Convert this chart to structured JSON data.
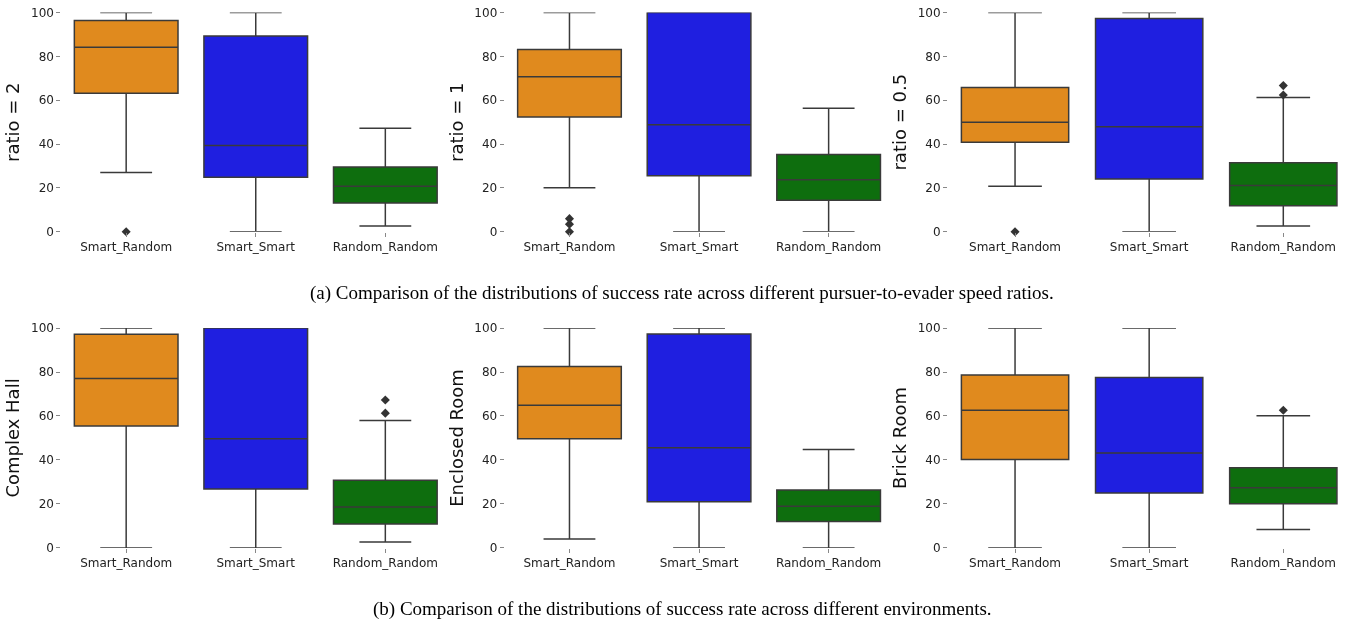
{
  "chart_data": [
    {
      "type": "box",
      "ylabel": "ratio = 2",
      "categories": [
        "Smart_Random",
        "Smart_Smart",
        "Random_Random"
      ],
      "colors": [
        "#e08a1e",
        "#1f1fe0",
        "#0e6e0e"
      ],
      "ylim": [
        0,
        100
      ],
      "yticks": [
        0,
        20,
        40,
        60,
        80,
        100
      ],
      "marker": "diamond",
      "boxes": [
        {
          "low": 27,
          "q1": 63.2,
          "median": 84.2,
          "q3": 96.4,
          "high": 100,
          "outliers": [
            0
          ]
        },
        {
          "low": 0,
          "q1": 24.9,
          "median": 39.4,
          "q3": 89.3,
          "high": 100
        },
        {
          "low": 2.7,
          "q1": 13.1,
          "median": 20.8,
          "q3": 29.6,
          "high": 47.2
        }
      ]
    },
    {
      "type": "box",
      "ylabel": "ratio = 1",
      "categories": [
        "Smart_Random",
        "Smart_Smart",
        "Random_Random"
      ],
      "colors": [
        "#e08a1e",
        "#1f1fe0",
        "#0e6e0e"
      ],
      "ylim": [
        0,
        100
      ],
      "yticks": [
        0,
        20,
        40,
        60,
        80,
        100
      ],
      "marker": "diamond",
      "boxes": [
        {
          "low": 20.1,
          "q1": 52.4,
          "median": 70.7,
          "q3": 83.2,
          "high": 100,
          "outliers": [
            0,
            3.5,
            6
          ]
        },
        {
          "low": 0,
          "q1": 25.6,
          "median": 48.8,
          "q3": 100,
          "high": 100
        },
        {
          "low": 0,
          "q1": 14.4,
          "median": 23.7,
          "q3": 35.3,
          "high": 56.4
        }
      ]
    },
    {
      "type": "box",
      "ylabel": "ratio = 0.5",
      "categories": [
        "Smart_Random",
        "Smart_Smart",
        "Random_Random"
      ],
      "colors": [
        "#e08a1e",
        "#1f1fe0",
        "#0e6e0e"
      ],
      "ylim": [
        0,
        100
      ],
      "yticks": [
        0,
        20,
        40,
        60,
        80,
        100
      ],
      "marker": "diamond",
      "annotations": [
        "(a) Comparison of the distributions of success rate across different pursuer-to-evader speed ratios."
      ],
      "boxes": [
        {
          "low": 20.8,
          "q1": 40.8,
          "median": 50,
          "q3": 65.8,
          "high": 100,
          "outliers": [
            0
          ]
        },
        {
          "low": 0,
          "q1": 24.1,
          "median": 47.9,
          "q3": 97.3,
          "high": 100
        },
        {
          "low": 2.7,
          "q1": 11.9,
          "median": 21.1,
          "q3": 31.5,
          "high": 61.3,
          "outliers": [
            62.4,
            66.7
          ]
        }
      ]
    },
    {
      "type": "box",
      "ylabel": "Complex Hall",
      "categories": [
        "Smart_Random",
        "Smart_Smart",
        "Random_Random"
      ],
      "colors": [
        "#e08a1e",
        "#1f1fe0",
        "#0e6e0e"
      ],
      "ylim": [
        0,
        100
      ],
      "yticks": [
        0,
        20,
        40,
        60,
        80,
        100
      ],
      "marker": "diamond",
      "boxes": [
        {
          "low": 0,
          "q1": 55.4,
          "median": 77.1,
          "q3": 97.2,
          "high": 100
        },
        {
          "low": 0,
          "q1": 26.8,
          "median": 49.6,
          "q3": 100,
          "high": 100
        },
        {
          "low": 2.7,
          "q1": 10.9,
          "median": 18.6,
          "q3": 30.8,
          "high": 58,
          "outliers": [
            61.3,
            67.3
          ]
        }
      ]
    },
    {
      "type": "box",
      "ylabel": "Enclosed Room",
      "categories": [
        "Smart_Random",
        "Smart_Smart",
        "Random_Random"
      ],
      "colors": [
        "#e08a1e",
        "#1f1fe0",
        "#0e6e0e"
      ],
      "ylim": [
        0,
        100
      ],
      "yticks": [
        0,
        20,
        40,
        60,
        80,
        100
      ],
      "marker": "diamond",
      "boxes": [
        {
          "low": 4,
          "q1": 49.6,
          "median": 64.9,
          "q3": 82.5,
          "high": 100
        },
        {
          "low": 0,
          "q1": 21,
          "median": 45.6,
          "q3": 97.3,
          "high": 100
        },
        {
          "low": 0,
          "q1": 12,
          "median": 18.9,
          "q3": 26.3,
          "high": 44.8
        }
      ]
    },
    {
      "type": "box",
      "ylabel": "Brick Room",
      "categories": [
        "Smart_Random",
        "Smart_Smart",
        "Random_Random"
      ],
      "colors": [
        "#e08a1e",
        "#1f1fe0",
        "#0e6e0e"
      ],
      "ylim": [
        0,
        100
      ],
      "yticks": [
        0,
        20,
        40,
        60,
        80,
        100
      ],
      "marker": "diamond",
      "annotations": [
        "(b) Comparison of the distributions of success rate across different environments."
      ],
      "boxes": [
        {
          "low": 0,
          "q1": 40.2,
          "median": 62.6,
          "q3": 78.6,
          "high": 100
        },
        {
          "low": 0,
          "q1": 25,
          "median": 43.2,
          "q3": 77.5,
          "high": 100
        },
        {
          "low": 8.4,
          "q1": 20.1,
          "median": 27.4,
          "q3": 36.5,
          "high": 60.1,
          "outliers": [
            62.6
          ]
        }
      ]
    }
  ]
}
